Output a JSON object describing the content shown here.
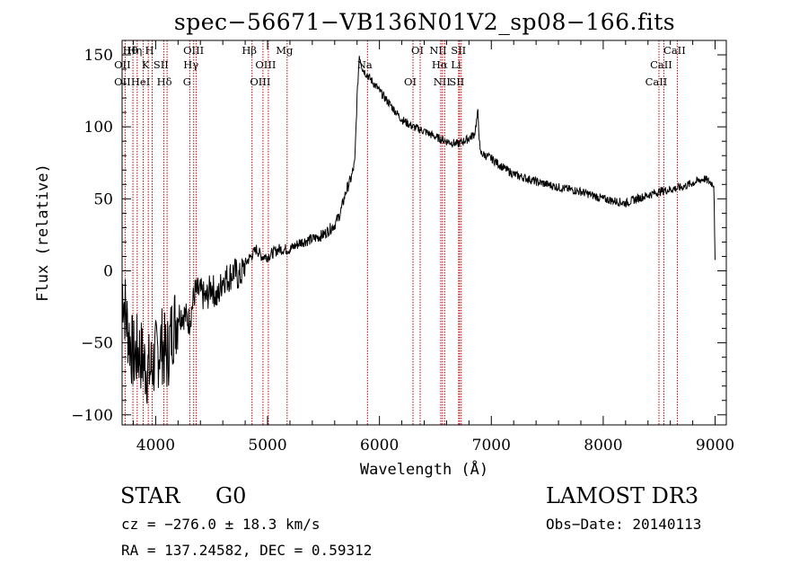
{
  "title": "spec−56671−VB136N01V2_sp08−166.fits",
  "footer": {
    "object_class": "STAR",
    "subclass": "G0",
    "survey": "LAMOST DR3",
    "cz": "cz = −276.0 ± 18.3 km/s",
    "obs_date": "Obs−Date: 20140113",
    "radec": "RA = 137.24582, DEC =   0.59312"
  },
  "chart_data": {
    "type": "line",
    "title": "spec−56671−VB136N01V2_sp08−166.fits",
    "xlabel": "Wavelength (Å)",
    "ylabel": "Flux (relative)",
    "xlim": [
      3700,
      9100
    ],
    "ylim": [
      -107,
      160
    ],
    "xticks": [
      4000,
      5000,
      6000,
      7000,
      8000,
      9000
    ],
    "yticks": [
      -100,
      -50,
      0,
      50,
      100,
      150
    ],
    "ytick_labels": [
      "−100",
      "−50",
      "0",
      "50",
      "100",
      "150"
    ],
    "spectrum": {
      "x": [
        3700,
        3750,
        3800,
        3850,
        3900,
        3950,
        4000,
        4050,
        4100,
        4150,
        4200,
        4250,
        4300,
        4350,
        4400,
        4450,
        4500,
        4550,
        4600,
        4650,
        4700,
        4750,
        4800,
        4850,
        4900,
        4950,
        5000,
        5100,
        5200,
        5300,
        5400,
        5500,
        5600,
        5650,
        5700,
        5750,
        5780,
        5800,
        5820,
        5850,
        5900,
        5950,
        6000,
        6100,
        6200,
        6300,
        6400,
        6500,
        6600,
        6700,
        6800,
        6850,
        6880,
        6900,
        7000,
        7100,
        7200,
        7400,
        7600,
        7800,
        8000,
        8200,
        8300,
        8500,
        8700,
        8900,
        8990,
        9000
      ],
      "y": [
        -10,
        -40,
        -60,
        -55,
        -65,
        -70,
        -60,
        -50,
        -60,
        -40,
        -30,
        -30,
        -35,
        -15,
        -15,
        -20,
        -10,
        -20,
        -5,
        -5,
        0,
        -5,
        5,
        10,
        15,
        10,
        10,
        15,
        15,
        20,
        22,
        25,
        32,
        40,
        55,
        65,
        75,
        120,
        150,
        140,
        135,
        130,
        125,
        115,
        105,
        100,
        97,
        93,
        90,
        88,
        92,
        95,
        110,
        82,
        78,
        72,
        67,
        62,
        58,
        55,
        50,
        47,
        50,
        55,
        58,
        64,
        60,
        5
      ]
    },
    "line_labels": [
      {
        "name": "Hθ",
        "wavelength": 3797
      },
      {
        "name": "OII",
        "wavelength": 3727
      },
      {
        "name": "OII",
        "wavelength": 3727
      },
      {
        "name": "Hη",
        "wavelength": 3835
      },
      {
        "name": "K",
        "wavelength": 3934
      },
      {
        "name": "HeI",
        "wavelength": 3889
      },
      {
        "name": "H",
        "wavelength": 3969
      },
      {
        "name": "SII",
        "wavelength": 4072
      },
      {
        "name": "Hδ",
        "wavelength": 4102
      },
      {
        "name": "OIII",
        "wavelength": 4363
      },
      {
        "name": "Hγ",
        "wavelength": 4340
      },
      {
        "name": "G",
        "wavelength": 4305
      },
      {
        "name": "Hβ",
        "wavelength": 4861
      },
      {
        "name": "OIII",
        "wavelength": 5007
      },
      {
        "name": "OIII",
        "wavelength": 4959
      },
      {
        "name": "Mg",
        "wavelength": 5175
      },
      {
        "name": "Na",
        "wavelength": 5893
      },
      {
        "name": "OI",
        "wavelength": 6300
      },
      {
        "name": "OI",
        "wavelength": 6364
      },
      {
        "name": "Hα",
        "wavelength": 6563
      },
      {
        "name": "SII",
        "wavelength": 6716
      },
      {
        "name": "NII",
        "wavelength": 6548
      },
      {
        "name": "Li",
        "wavelength": 6708
      },
      {
        "name": "NII",
        "wavelength": 6583
      },
      {
        "name": "SII",
        "wavelength": 6731
      },
      {
        "name": "CaII",
        "wavelength": 8542
      },
      {
        "name": "CaII",
        "wavelength": 8498
      },
      {
        "name": "CaII",
        "wavelength": 8662
      }
    ]
  },
  "colors": {
    "line_marker": "#c00000",
    "spectrum": "#000000",
    "axes": "#000000"
  }
}
